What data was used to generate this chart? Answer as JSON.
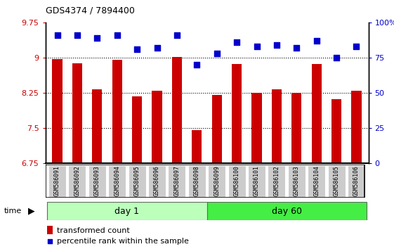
{
  "title": "GDS4374 / 7894400",
  "samples": [
    "GSM586091",
    "GSM586092",
    "GSM586093",
    "GSM586094",
    "GSM586095",
    "GSM586096",
    "GSM586097",
    "GSM586098",
    "GSM586099",
    "GSM586100",
    "GSM586101",
    "GSM586102",
    "GSM586103",
    "GSM586104",
    "GSM586105",
    "GSM586106"
  ],
  "bar_values": [
    8.97,
    8.88,
    8.32,
    8.95,
    8.17,
    8.3,
    9.02,
    7.45,
    8.2,
    8.87,
    8.25,
    8.32,
    8.25,
    8.87,
    8.12,
    8.3
  ],
  "percentile_values": [
    91,
    91,
    89,
    91,
    81,
    82,
    91,
    70,
    78,
    86,
    83,
    84,
    82,
    87,
    75,
    83
  ],
  "ylim_left": [
    6.75,
    9.75
  ],
  "ylim_right": [
    0,
    100
  ],
  "yticks_left": [
    6.75,
    7.5,
    8.25,
    9.0,
    9.75
  ],
  "yticks_right": [
    0,
    25,
    50,
    75,
    100
  ],
  "ytick_labels_left": [
    "6.75",
    "7.5",
    "8.25",
    "9",
    "9.75"
  ],
  "ytick_labels_right": [
    "0",
    "25",
    "50",
    "75",
    "100%"
  ],
  "hlines": [
    9.0,
    8.25,
    7.5
  ],
  "day1_indices": [
    0,
    7
  ],
  "day60_indices": [
    8,
    15
  ],
  "day1_label": "day 1",
  "day60_label": "day 60",
  "bar_color": "#cc0000",
  "dot_color": "#0000cc",
  "day1_color": "#bbffbb",
  "day60_color": "#44ee44",
  "tick_bg_color": "#cccccc",
  "bg_color": "#ffffff",
  "left_tick_color": "#cc0000",
  "right_tick_color": "#0000cc",
  "legend_bar_label": "transformed count",
  "legend_dot_label": "percentile rank within the sample",
  "bar_width": 0.5,
  "dot_size": 35
}
